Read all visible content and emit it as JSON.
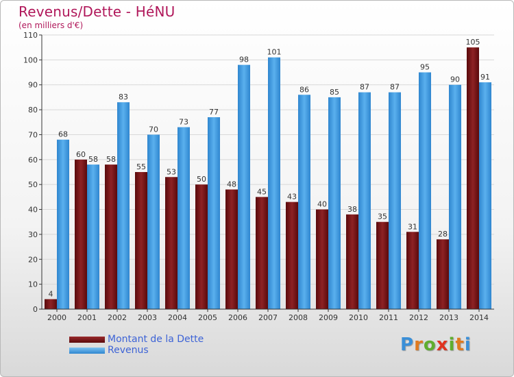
{
  "title": "Revenus/Dette - HéNU",
  "subtitle": "(en milliers d'€)",
  "colors": {
    "title": "#b0175a",
    "debt": "#7a1416",
    "revenue": "#4a9fe0",
    "legend_text": "#3d63d6",
    "axis": "#333333",
    "grid": "#d8d8d8"
  },
  "legend": {
    "debt_label": "Montant de la Dette",
    "revenue_label": "Revenus"
  },
  "logo": {
    "text": "Proxiti",
    "letter_colors": [
      "#3a8fd8",
      "#e07a1f",
      "#5fae2e",
      "#e0331f",
      "#5fae2e",
      "#e07a1f",
      "#3a8fd8"
    ]
  },
  "chart_data": {
    "type": "bar",
    "categories": [
      "2000",
      "2001",
      "2002",
      "2003",
      "2004",
      "2005",
      "2006",
      "2007",
      "2008",
      "2009",
      "2010",
      "2011",
      "2012",
      "2013",
      "2014"
    ],
    "series": [
      {
        "name": "Montant de la Dette",
        "values": [
          4,
          60,
          58,
          55,
          53,
          50,
          48,
          45,
          43,
          40,
          38,
          35,
          31,
          28,
          105
        ]
      },
      {
        "name": "Revenus",
        "values": [
          68,
          58,
          83,
          70,
          73,
          77,
          98,
          101,
          86,
          85,
          87,
          87,
          95,
          90,
          91
        ]
      }
    ],
    "yticks": [
      0,
      10,
      20,
      30,
      40,
      50,
      60,
      70,
      80,
      90,
      100,
      110
    ],
    "ylim": [
      0,
      110
    ],
    "grid": true,
    "legend_position": "bottom-left"
  }
}
